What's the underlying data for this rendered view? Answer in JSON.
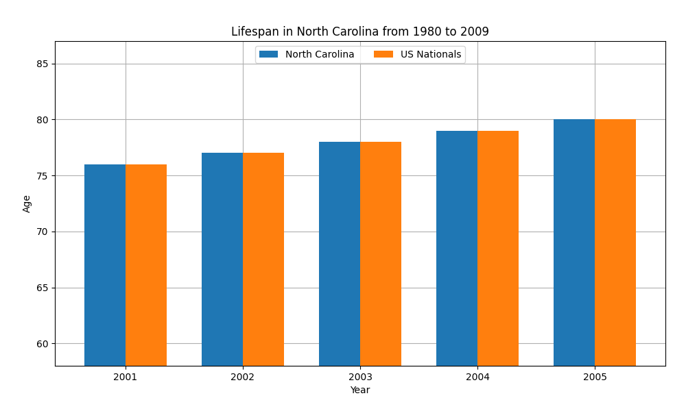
{
  "chart_data": {
    "type": "bar",
    "title": "Lifespan in North Carolina from 1980 to 2009",
    "xlabel": "Year",
    "ylabel": "Age",
    "categories": [
      "2001",
      "2002",
      "2003",
      "2004",
      "2005"
    ],
    "series": [
      {
        "name": "North Carolina",
        "values": [
          76,
          77,
          78,
          79,
          80
        ]
      },
      {
        "name": "US Nationals",
        "values": [
          76,
          77,
          78,
          79,
          80
        ]
      }
    ],
    "ylim": [
      58,
      87
    ],
    "yticks": [
      60,
      65,
      70,
      75,
      80,
      85
    ],
    "grid": true,
    "legend": "upper center"
  }
}
